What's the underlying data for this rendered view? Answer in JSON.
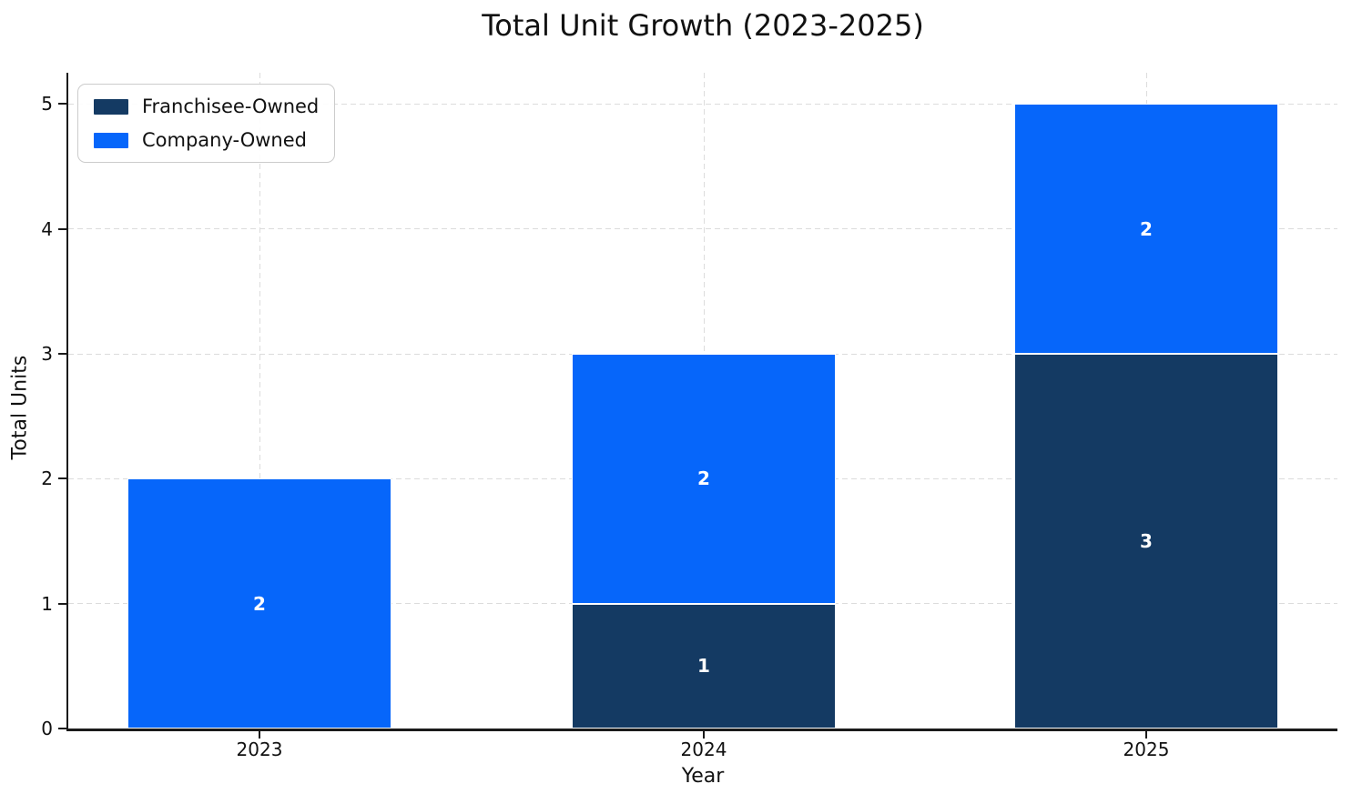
{
  "chart_data": {
    "type": "bar",
    "stacked": true,
    "title": "Total Unit Growth (2023-2025)",
    "xlabel": "Year",
    "ylabel": "Total Units",
    "categories": [
      "2023",
      "2024",
      "2025"
    ],
    "series": [
      {
        "name": "Franchisee-Owned",
        "color": "#143A63",
        "values": [
          0,
          1,
          3
        ]
      },
      {
        "name": "Company-Owned",
        "color": "#0666FA",
        "values": [
          2,
          2,
          2
        ]
      }
    ],
    "totals": [
      2,
      3,
      5
    ],
    "bar_labels_shown": true,
    "bar_label_color": "#ffffff",
    "ylim": [
      0,
      5.25
    ],
    "yticks": [
      0,
      1,
      2,
      3,
      4,
      5
    ],
    "grid": "both",
    "grid_style": "dashed",
    "legend_position": "upper-left",
    "colors": {
      "background": "#ffffff",
      "axis": "#1a1a1a",
      "gridline": "#dcdcdc",
      "text": "#111111"
    }
  }
}
